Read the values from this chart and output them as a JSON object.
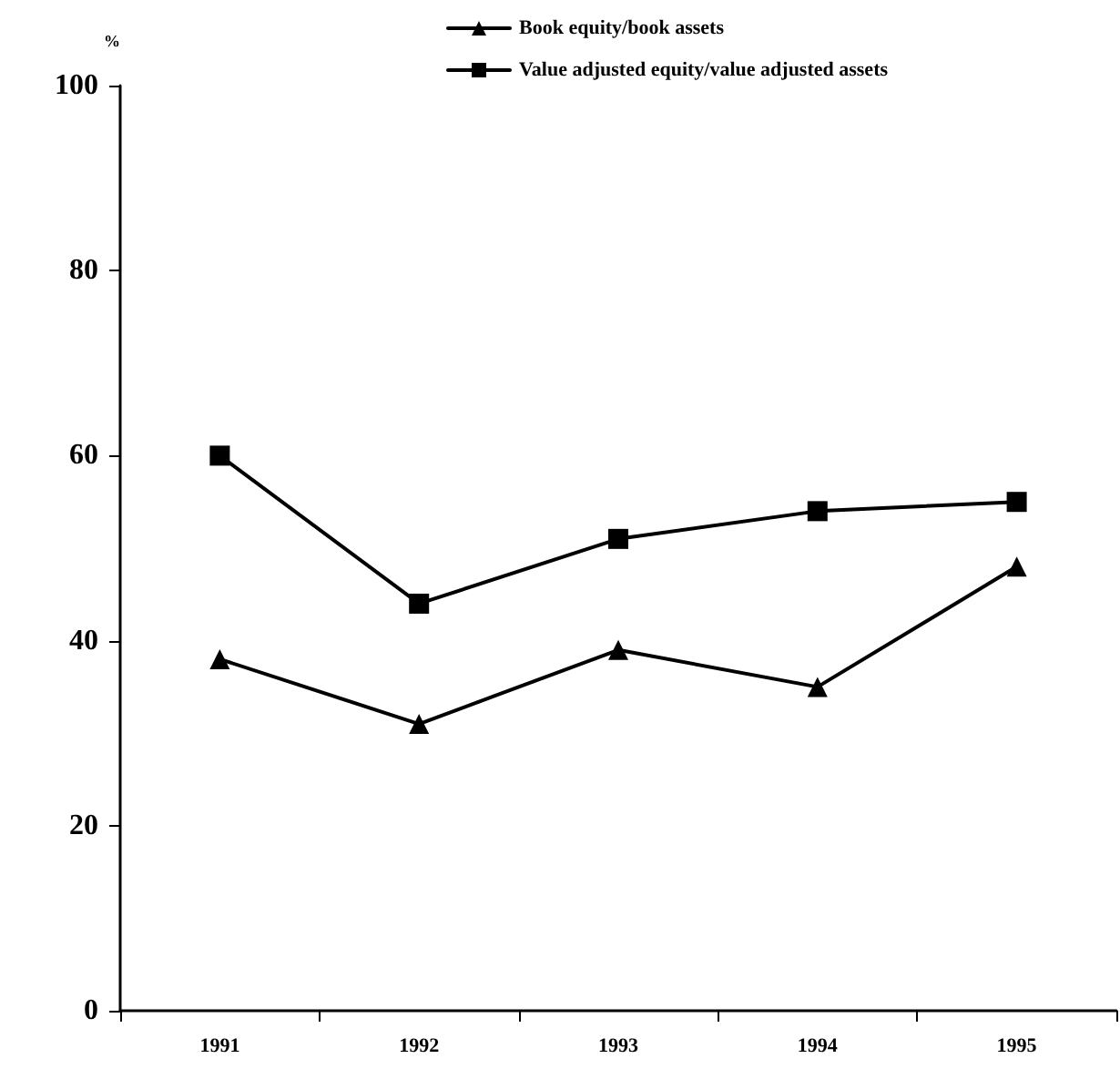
{
  "chart_data": {
    "type": "line",
    "ylabel": "%",
    "categories": [
      "1991",
      "1992",
      "1993",
      "1994",
      "1995"
    ],
    "series": [
      {
        "name": "Book equity/book assets",
        "color": "#000000",
        "marker": "triangle",
        "values": [
          38,
          31,
          39,
          35,
          48
        ]
      },
      {
        "name": "Value adjusted equity/value adjusted assets",
        "color": "#000000",
        "marker": "square",
        "values": [
          60,
          44,
          51,
          54,
          55
        ]
      }
    ],
    "ylim": [
      0,
      100
    ],
    "yticks": [
      0,
      20,
      40,
      60,
      80,
      100
    ],
    "grid": false,
    "legend": "top",
    "line_style": "solid"
  }
}
